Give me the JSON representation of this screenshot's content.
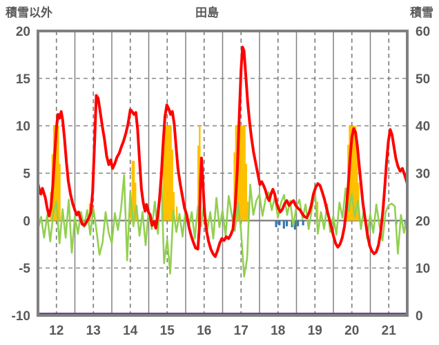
{
  "chart_data": {
    "type": "line",
    "title": "田島",
    "left_axis": {
      "label": "積雪以外",
      "min": -10,
      "max": 20,
      "ticks": [
        20,
        15,
        10,
        5,
        0,
        -5,
        -10
      ]
    },
    "right_axis": {
      "label": "積雪",
      "min": 0,
      "max": 60,
      "ticks": [
        60,
        50,
        40,
        30,
        20,
        10,
        0
      ]
    },
    "x_axis": {
      "range": [
        11.5,
        21.5
      ],
      "tick_days": [
        12,
        13,
        14,
        15,
        16,
        17,
        18,
        19,
        20,
        21
      ],
      "tick_labels": [
        "12",
        "13",
        "14",
        "15",
        "16",
        "17",
        "18",
        "19",
        "20",
        "21"
      ],
      "solid_grid_days": [
        12.5,
        13.5,
        14.5,
        15.5,
        16.5,
        17.5,
        18.5,
        19.5,
        20.5
      ],
      "dashed_grid_days": [
        12,
        13,
        14,
        15,
        16,
        17,
        18,
        19,
        20,
        21
      ]
    },
    "grid": {
      "line_color": "#808080",
      "zero_line_value": 0,
      "dashed_h_values": [
        15,
        10,
        5,
        -5
      ],
      "tick_label_color": "#595959",
      "border_color": "#808080"
    },
    "series": [
      {
        "name": "orange-bars",
        "type": "bar",
        "color": "#FFC000",
        "axis": "left",
        "bar_width_days": 0.042,
        "bars": [
          [
            11.85,
            3
          ],
          [
            11.89,
            7
          ],
          [
            11.93,
            10
          ],
          [
            11.97,
            10
          ],
          [
            12.01,
            10
          ],
          [
            12.05,
            10
          ],
          [
            12.09,
            6
          ],
          [
            12.9,
            1.8
          ],
          [
            14.02,
            2
          ],
          [
            14.06,
            6.3
          ],
          [
            14.1,
            6.3
          ],
          [
            14.14,
            4
          ],
          [
            14.18,
            1.5
          ],
          [
            14.86,
            3
          ],
          [
            14.9,
            8
          ],
          [
            14.94,
            10
          ],
          [
            14.98,
            10
          ],
          [
            15.02,
            10
          ],
          [
            15.06,
            10
          ],
          [
            15.1,
            10
          ],
          [
            15.14,
            7.5
          ],
          [
            15.18,
            3
          ],
          [
            15.26,
            1.5
          ],
          [
            15.84,
            7.9
          ],
          [
            15.88,
            10
          ],
          [
            16.82,
            7.2
          ],
          [
            16.86,
            10
          ],
          [
            16.9,
            10
          ],
          [
            16.94,
            10
          ],
          [
            16.98,
            10
          ],
          [
            17.02,
            10
          ],
          [
            17.06,
            10
          ],
          [
            17.1,
            10
          ],
          [
            17.14,
            6
          ],
          [
            17.18,
            2
          ],
          [
            19.07,
            2
          ],
          [
            19.86,
            3
          ],
          [
            19.9,
            8
          ],
          [
            19.94,
            10
          ],
          [
            19.98,
            10
          ],
          [
            20.02,
            10
          ],
          [
            20.06,
            10
          ],
          [
            20.1,
            10
          ],
          [
            20.14,
            8
          ],
          [
            20.18,
            4
          ]
        ]
      },
      {
        "name": "blue-bars",
        "type": "bar",
        "color": "#2E75B6",
        "axis": "left",
        "bar_width_days": 0.055,
        "direction": "down",
        "bars": [
          [
            17.95,
            0.7
          ],
          [
            18.04,
            0.5
          ],
          [
            18.16,
            0.85
          ],
          [
            18.24,
            0.6
          ],
          [
            18.38,
            0.7
          ],
          [
            18.46,
            0.95
          ],
          [
            18.54,
            0.6
          ],
          [
            18.68,
            0.5
          ],
          [
            20.24,
            0.35
          ],
          [
            21.2,
            0.4
          ],
          [
            21.45,
            0.5
          ]
        ]
      },
      {
        "name": "purple-line",
        "type": "line",
        "color": "#7030A0",
        "width": 3.5,
        "axis": "left",
        "points": [
          [
            11.5,
            -9.85
          ],
          [
            21.5,
            -9.85
          ]
        ]
      },
      {
        "name": "green-line",
        "type": "line",
        "color": "#92D050",
        "width": 2.6,
        "axis": "left",
        "x_start": 11.5,
        "x_step": 0.0833,
        "values": [
          -0.9,
          0.4,
          -1.8,
          0.6,
          -2.2,
          0.8,
          2.0,
          -2.4,
          1.2,
          -1.8,
          2.2,
          -3.4,
          0.5,
          -1.4,
          0.9,
          -0.7,
          1.1,
          -1.5,
          1.3,
          -1.0,
          -3.6,
          -2.3,
          0.9,
          -1.3,
          -2.4,
          0.8,
          -1.0,
          1.2,
          4.8,
          -4.2,
          3.0,
          -0.6,
          1.6,
          -1.6,
          0.9,
          -2.6,
          1.2,
          -0.9,
          2.0,
          -1.4,
          5.2,
          -4.5,
          -2.0,
          -5.6,
          1.1,
          -1.2,
          0.7,
          -1.7,
          1.3,
          -0.7,
          0.9,
          -1.9,
          1.5,
          -0.6,
          2.0,
          -1.1,
          0.9,
          -1.9,
          2.4,
          -0.7,
          1.1,
          -1.6,
          2.6,
          0.6,
          -1.1,
          1.9,
          -1.0,
          -5.9,
          -4.0,
          3.8,
          0.6,
          2.1,
          2.8,
          0.5,
          2.3,
          3.0,
          1.1,
          2.5,
          0.3,
          1.9,
          2.7,
          0.6,
          2.1,
          -0.6,
          1.5,
          2.2,
          0.2,
          1.7,
          -0.9,
          1.1,
          3.4,
          -1.4,
          0.9,
          -0.9,
          1.7,
          -1.2,
          0.5,
          -1.5,
          1.9,
          0.3,
          3.4,
          1.0,
          2.8,
          0.4,
          2.1,
          -0.9,
          1.3,
          -1.9,
          0.7,
          -1.3,
          1.7,
          -0.5,
          -2.1,
          0.9,
          1.6,
          1.8,
          1.5,
          -3.5,
          0.6,
          -1.3,
          0.5
        ]
      },
      {
        "name": "red-line",
        "type": "line",
        "color": "#FF0000",
        "width": 4,
        "axis": "left",
        "points": [
          [
            11.5,
            3.9
          ],
          [
            11.54,
            3.2
          ],
          [
            11.58,
            2.8
          ],
          [
            11.62,
            3.4
          ],
          [
            11.66,
            2.9
          ],
          [
            11.7,
            2.4
          ],
          [
            11.75,
            1.3
          ],
          [
            11.8,
            0.5
          ],
          [
            11.85,
            1.3
          ],
          [
            11.9,
            3.6
          ],
          [
            11.95,
            6.8
          ],
          [
            12.0,
            9.8
          ],
          [
            12.04,
            11.2
          ],
          [
            12.08,
            10.8
          ],
          [
            12.13,
            11.5
          ],
          [
            12.17,
            10.6
          ],
          [
            12.22,
            8.6
          ],
          [
            12.27,
            6.2
          ],
          [
            12.32,
            4.2
          ],
          [
            12.38,
            2.8
          ],
          [
            12.44,
            1.8
          ],
          [
            12.5,
            1.1
          ],
          [
            12.55,
            0.6
          ],
          [
            12.6,
            0.9
          ],
          [
            12.65,
            0.2
          ],
          [
            12.7,
            -0.4
          ],
          [
            12.76,
            -0.5
          ],
          [
            12.82,
            -0.1
          ],
          [
            12.88,
            0.3
          ],
          [
            12.93,
            0.8
          ],
          [
            12.98,
            3.0
          ],
          [
            13.03,
            8.0
          ],
          [
            13.08,
            13.2
          ],
          [
            13.13,
            12.9
          ],
          [
            13.18,
            11.6
          ],
          [
            13.24,
            10.0
          ],
          [
            13.3,
            8.6
          ],
          [
            13.36,
            6.8
          ],
          [
            13.42,
            5.9
          ],
          [
            13.47,
            6.4
          ],
          [
            13.52,
            5.5
          ],
          [
            13.58,
            6.0
          ],
          [
            13.64,
            6.7
          ],
          [
            13.7,
            7.1
          ],
          [
            13.76,
            7.8
          ],
          [
            13.82,
            8.4
          ],
          [
            13.88,
            9.2
          ],
          [
            13.94,
            10.2
          ],
          [
            14.0,
            11.7
          ],
          [
            14.05,
            11.5
          ],
          [
            14.1,
            11.2
          ],
          [
            14.15,
            11.4
          ],
          [
            14.2,
            9.6
          ],
          [
            14.25,
            6.4
          ],
          [
            14.3,
            3.4
          ],
          [
            14.35,
            1.9
          ],
          [
            14.4,
            1.0
          ],
          [
            14.44,
            1.7
          ],
          [
            14.49,
            0.9
          ],
          [
            14.54,
            0.6
          ],
          [
            14.59,
            -0.5
          ],
          [
            14.64,
            -0.1
          ],
          [
            14.69,
            -0.8
          ],
          [
            14.74,
            0.4
          ],
          [
            14.79,
            2.2
          ],
          [
            14.84,
            4.8
          ],
          [
            14.89,
            8.2
          ],
          [
            14.94,
            11.0
          ],
          [
            14.99,
            12.2
          ],
          [
            15.04,
            11.8
          ],
          [
            15.09,
            11.2
          ],
          [
            15.14,
            11.5
          ],
          [
            15.19,
            10.2
          ],
          [
            15.24,
            7.8
          ],
          [
            15.29,
            5.5
          ],
          [
            15.35,
            3.9
          ],
          [
            15.41,
            2.6
          ],
          [
            15.47,
            1.3
          ],
          [
            15.53,
            0.6
          ],
          [
            15.59,
            -0.7
          ],
          [
            15.65,
            -1.6
          ],
          [
            15.71,
            -2.3
          ],
          [
            15.77,
            -2.9
          ],
          [
            15.83,
            -3.0
          ],
          [
            15.87,
            -0.8
          ],
          [
            15.9,
            4.2
          ],
          [
            15.93,
            6.6
          ],
          [
            15.97,
            3.8
          ],
          [
            16.01,
            0.8
          ],
          [
            16.06,
            -1.0
          ],
          [
            16.12,
            -2.2
          ],
          [
            16.18,
            -3.0
          ],
          [
            16.24,
            -3.5
          ],
          [
            16.3,
            -3.8
          ],
          [
            16.36,
            -3.2
          ],
          [
            16.42,
            -2.4
          ],
          [
            16.48,
            -1.9
          ],
          [
            16.54,
            -2.1
          ],
          [
            16.6,
            -1.7
          ],
          [
            16.66,
            -1.9
          ],
          [
            16.72,
            -1.5
          ],
          [
            16.78,
            -0.9
          ],
          [
            16.84,
            1.5
          ],
          [
            16.9,
            5.5
          ],
          [
            16.95,
            11.0
          ],
          [
            17.0,
            16.0
          ],
          [
            17.04,
            18.3
          ],
          [
            17.08,
            17.9
          ],
          [
            17.13,
            15.2
          ],
          [
            17.18,
            12.4
          ],
          [
            17.23,
            10.4
          ],
          [
            17.28,
            8.8
          ],
          [
            17.34,
            7.2
          ],
          [
            17.4,
            6.0
          ],
          [
            17.46,
            4.8
          ],
          [
            17.51,
            3.8
          ],
          [
            17.56,
            4.1
          ],
          [
            17.61,
            3.7
          ],
          [
            17.66,
            3.2
          ],
          [
            17.71,
            2.5
          ],
          [
            17.76,
            2.1
          ],
          [
            17.81,
            2.8
          ],
          [
            17.86,
            3.3
          ],
          [
            17.91,
            2.8
          ],
          [
            17.96,
            1.9
          ],
          [
            18.01,
            1.3
          ],
          [
            18.06,
            0.9
          ],
          [
            18.12,
            1.2
          ],
          [
            18.18,
            1.8
          ],
          [
            18.24,
            2.1
          ],
          [
            18.3,
            1.6
          ],
          [
            18.36,
            1.9
          ],
          [
            18.42,
            2.1
          ],
          [
            18.48,
            1.6
          ],
          [
            18.54,
            1.3
          ],
          [
            18.6,
            1.1
          ],
          [
            18.66,
            0.7
          ],
          [
            18.72,
            0.4
          ],
          [
            18.78,
            0.3
          ],
          [
            18.84,
            0.8
          ],
          [
            18.9,
            1.6
          ],
          [
            18.96,
            2.8
          ],
          [
            19.02,
            3.5
          ],
          [
            19.08,
            3.9
          ],
          [
            19.14,
            3.7
          ],
          [
            19.2,
            3.0
          ],
          [
            19.26,
            2.2
          ],
          [
            19.32,
            1.2
          ],
          [
            19.38,
            0.3
          ],
          [
            19.44,
            -0.6
          ],
          [
            19.5,
            -1.6
          ],
          [
            19.56,
            -2.4
          ],
          [
            19.62,
            -2.8
          ],
          [
            19.68,
            -2.5
          ],
          [
            19.74,
            -1.8
          ],
          [
            19.8,
            -0.6
          ],
          [
            19.85,
            1.2
          ],
          [
            19.9,
            3.6
          ],
          [
            19.95,
            6.5
          ],
          [
            20.0,
            8.8
          ],
          [
            20.05,
            9.7
          ],
          [
            20.1,
            9.3
          ],
          [
            20.15,
            7.8
          ],
          [
            20.2,
            5.8
          ],
          [
            20.25,
            3.8
          ],
          [
            20.3,
            1.8
          ],
          [
            20.36,
            0.2
          ],
          [
            20.42,
            -1.4
          ],
          [
            20.48,
            -2.6
          ],
          [
            20.54,
            -3.2
          ],
          [
            20.6,
            -3.5
          ],
          [
            20.66,
            -3.3
          ],
          [
            20.72,
            -2.6
          ],
          [
            20.78,
            -1.2
          ],
          [
            20.84,
            1.0
          ],
          [
            20.89,
            3.5
          ],
          [
            20.94,
            6.2
          ],
          [
            20.99,
            8.4
          ],
          [
            21.04,
            9.6
          ],
          [
            21.09,
            9.0
          ],
          [
            21.14,
            7.8
          ],
          [
            21.19,
            6.6
          ],
          [
            21.25,
            5.7
          ],
          [
            21.31,
            5.2
          ],
          [
            21.37,
            5.5
          ],
          [
            21.43,
            4.8
          ],
          [
            21.5,
            3.9
          ]
        ]
      }
    ]
  }
}
